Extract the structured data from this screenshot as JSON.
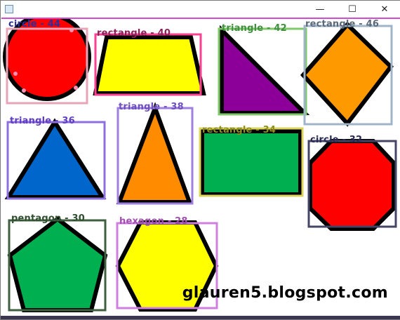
{
  "window": {
    "controls": {
      "minimize": "—",
      "maximize": "☐",
      "close": "✕"
    }
  },
  "shapes": [
    {
      "label": "circle - 44",
      "label_color": "#2f2f9a",
      "box_color": "#e8a5b8",
      "fill": "#ff0000",
      "kind": "circle"
    },
    {
      "label": "rectangle - 40",
      "label_color": "#8a1f5a",
      "box_color": "#ff3f8f",
      "fill": "#ffff00",
      "kind": "trapezoid"
    },
    {
      "label": "triangle - 42",
      "label_color": "#3f8f3f",
      "box_color": "#7fc96a",
      "fill": "#8c0099",
      "kind": "right-triangle"
    },
    {
      "label": "rectangle - 46",
      "label_color": "#5a6a7a",
      "box_color": "#a0b4c8",
      "fill": "#ff9900",
      "kind": "diamond"
    },
    {
      "label": "triangle - 36",
      "label_color": "#5f3fbf",
      "box_color": "#8e6fe0",
      "fill": "#0066cc",
      "kind": "triangle"
    },
    {
      "label": "triangle - 38",
      "label_color": "#6f4fbf",
      "box_color": "#9f7fe0",
      "fill": "#ff8c00",
      "kind": "triangle"
    },
    {
      "label": "rectangle - 34",
      "label_color": "#8f8f20",
      "box_color": "#dcd55a",
      "fill": "#00b050",
      "kind": "rectangle"
    },
    {
      "label": "circle - 32",
      "label_color": "#2a2a55",
      "box_color": "#444466",
      "fill": "#ff0000",
      "kind": "octagon"
    },
    {
      "label": "pentagon - 30",
      "label_color": "#2f4f2f",
      "box_color": "#3f5f3f",
      "fill": "#00b050",
      "kind": "pentagon"
    },
    {
      "label": "hexagon - 28",
      "label_color": "#a04fb0",
      "box_color": "#d07fe0",
      "fill": "#ffff00",
      "kind": "hexagon"
    }
  ],
  "watermark": "glauren5.blogspot.com"
}
